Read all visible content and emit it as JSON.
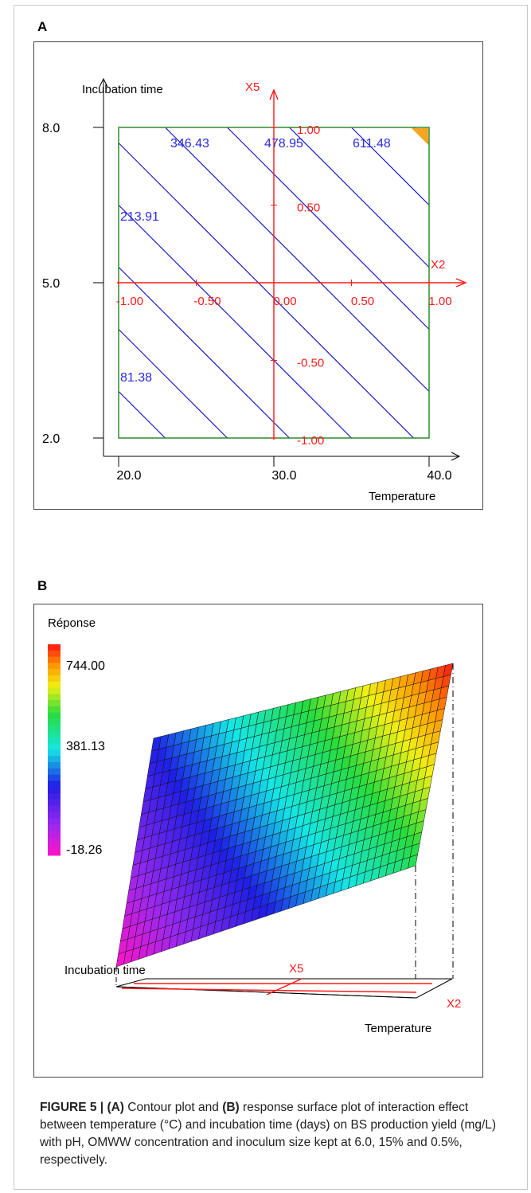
{
  "panels": {
    "a_letter": "A",
    "b_letter": "B"
  },
  "caption": {
    "fig_label": "FIGURE 5 | ",
    "part_a": "(A)",
    "text_1": " Contour plot and ",
    "part_b": "(B)",
    "text_2": " response surface plot of interaction effect between temperature (°C) and incubation time (days) on BS production yield (mg/L) with pH, OMWW concentration and inoculum size kept at 6.0, 15% and 0.5%, respectively."
  },
  "colors": {
    "contour_line": "#1a1acc",
    "contour_label": "#2a2ae0",
    "coded_axes": "#ff1a1a",
    "box": "#2e8b2e",
    "highlight": "#f5a623"
  },
  "chart_data": [
    {
      "type": "contour",
      "xlabel": "Temperature",
      "ylabel": "Incubation time",
      "x_ticks": [
        "20.0",
        "30.0",
        "40.0"
      ],
      "y_ticks": [
        "2.0",
        "5.0",
        "8.0"
      ],
      "xlim": [
        20.0,
        40.0
      ],
      "ylim": [
        2.0,
        8.0
      ],
      "coded_axes": {
        "x_name": "X2",
        "y_name": "X5",
        "x_ticks": [
          "-1.00",
          "-0.50",
          "0.00",
          "0.50",
          "1.00"
        ],
        "y_ticks": [
          "-1.00",
          "-0.50",
          "0.50",
          "1.00"
        ]
      },
      "contour_levels": [
        81.38,
        213.91,
        346.43,
        478.95,
        611.48
      ],
      "contour_labels": [
        "81.38",
        "213.91",
        "346.43",
        "478.95",
        "611.48"
      ],
      "contour_line_offsets": [
        -1.7,
        -1.3,
        -0.9,
        -0.5,
        -0.1,
        0.3,
        0.7,
        1.1,
        1.5,
        1.9
      ],
      "highlight_region": "top-right corner"
    },
    {
      "type": "surface",
      "legend_title": "Réponse",
      "legend_values": [
        "744.00",
        "381.13",
        "-18.26"
      ],
      "zlim": [
        -18.26,
        744.0
      ],
      "axis_labels": {
        "incubation": "Incubation time",
        "x5": "X5",
        "x2": "X2",
        "temperature": "Temperature"
      },
      "corner_values": {
        "temp_low_time_low": -18.26,
        "temp_low_time_high": 240.0,
        "temp_high_time_low": 470.0,
        "temp_high_time_high": 744.0
      }
    }
  ]
}
